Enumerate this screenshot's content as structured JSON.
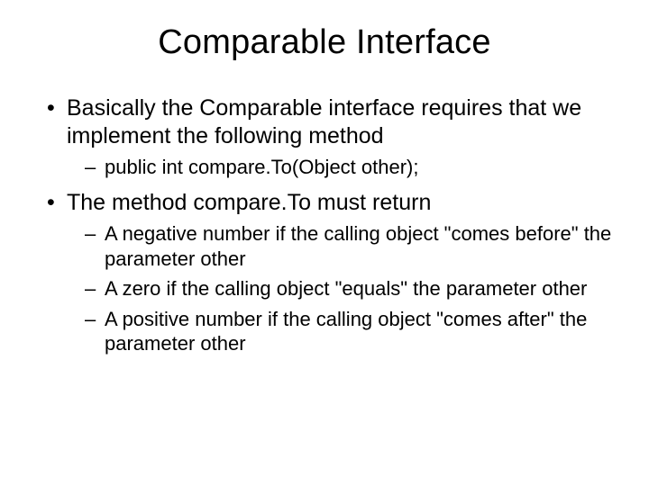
{
  "slide": {
    "title": "Comparable Interface",
    "title_fontsize": 38,
    "background_color": "#ffffff",
    "text_color": "#000000",
    "font_family": "Arial",
    "bullets": [
      {
        "text": "Basically the Comparable interface requires that we implement the following method",
        "sub": [
          {
            "text": "public int compare.To(Object other);"
          }
        ]
      },
      {
        "text": "The method compare.To must return",
        "sub": [
          {
            "text": "A negative number if the calling object \"comes before\" the parameter other"
          },
          {
            "text": "A zero if the calling object \"equals\" the parameter other"
          },
          {
            "text": "A positive number if the calling object \"comes after\" the parameter other"
          }
        ]
      }
    ],
    "level1_fontsize": 25,
    "level2_fontsize": 22
  }
}
